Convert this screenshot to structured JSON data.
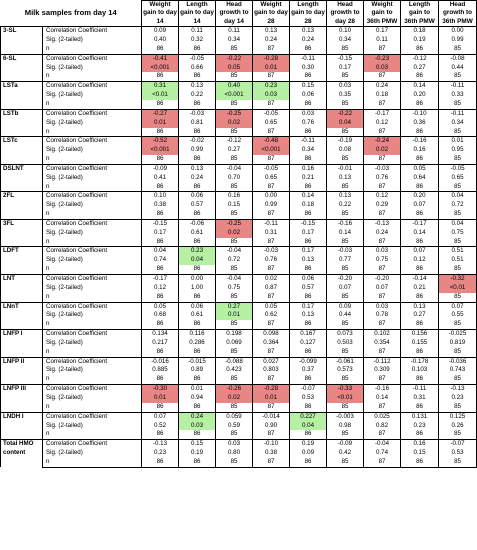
{
  "title": "Milk samples from day 14",
  "headers": [
    "Weight gain to day 14",
    "Length gain to day 14",
    "Head growth to day 14",
    "Weight gain to day 28",
    "Length gain to day 28",
    "Head growth to day 28",
    "Weight gain to 36th PMW",
    "Length gain to 36th PMW",
    "Head growth to 36th PMW"
  ],
  "header_lines": [
    [
      "Weight",
      "gain to day",
      "14"
    ],
    [
      "Length",
      "gain to day",
      "14"
    ],
    [
      "Head",
      "growth to",
      "day 14"
    ],
    [
      "Weight",
      "gain to day",
      "28"
    ],
    [
      "Length",
      "gain to day",
      "28"
    ],
    [
      "Head",
      "growth to",
      "day 28"
    ],
    [
      "Weight",
      "gain to",
      "36th PMW"
    ],
    [
      "Length",
      "gain to",
      "36th PMW"
    ],
    [
      "Head",
      "growth to",
      "36th PMW"
    ]
  ],
  "stat_labels": [
    "Correlation Coefficient",
    "Sig. (2-tailed)",
    "n"
  ],
  "highlight_colors": {
    "negative": "#e88686",
    "positive": "#b6f0a3"
  },
  "groups": [
    {
      "label": [
        "3-SL"
      ],
      "rows": [
        [
          "0.09",
          "0.11",
          "0.11",
          "0.13",
          "0.13",
          "0.10",
          "0.17",
          "0.18",
          "0.00"
        ],
        [
          "0.40",
          "0.32",
          "0.34",
          "0.24",
          "0.24",
          "0.34",
          "0.11",
          "0.19",
          "0.99"
        ],
        [
          "86",
          "86",
          "85",
          "87",
          "86",
          "85",
          "87",
          "86",
          "85"
        ]
      ],
      "hl": {}
    },
    {
      "label": [
        "6-SL"
      ],
      "rows": [
        [
          "-0.41",
          "-0.05",
          "-0.22",
          "-0.28",
          "-0.11",
          "-0.15",
          "-0.23",
          "-0.12",
          "-0.08"
        ],
        [
          "<0.001",
          "0.66",
          "0.05",
          "0.01",
          "0.30",
          "0.17",
          "0.03",
          "0.27",
          "0.44"
        ],
        [
          "86",
          "86",
          "85",
          "87",
          "86",
          "85",
          "87",
          "86",
          "85"
        ]
      ],
      "hl": {
        "0": "red",
        "2": "red",
        "3": "red",
        "6": "red"
      }
    },
    {
      "label": [
        "LSTa"
      ],
      "rows": [
        [
          "0.31",
          "0.13",
          "0.40",
          "0.23",
          "0.15",
          "0.03",
          "0.24",
          "0.14",
          "-0.11"
        ],
        [
          "<0.01",
          "0.22",
          "<0.001",
          "0.03",
          "0.06",
          "0.35",
          "0.18",
          "0.20",
          "0.33"
        ],
        [
          "86",
          "86",
          "85",
          "87",
          "86",
          "85",
          "87",
          "86",
          "85"
        ]
      ],
      "hl": {
        "0": "green",
        "2": "green",
        "3": "green"
      }
    },
    {
      "label": [
        "LSTb"
      ],
      "rows": [
        [
          "-0.27",
          "-0.03",
          "-0.25",
          "-0.05",
          "0.03",
          "-0.22",
          "-0.17",
          "-0.10",
          "-0.11"
        ],
        [
          "0.01",
          "0.81",
          "0.02",
          "0.65",
          "0.76",
          "0.04",
          "0.12",
          "0.36",
          "0.34"
        ],
        [
          "86",
          "86",
          "85",
          "87",
          "86",
          "85",
          "87",
          "86",
          "85"
        ]
      ],
      "hl": {
        "0": "red",
        "2": "red",
        "5": "red"
      }
    },
    {
      "label": [
        "LSTc"
      ],
      "rows": [
        [
          "-0.52",
          "-0.02",
          "-0.12",
          "-0.48",
          "-0.11",
          "-0.19",
          "-0.24",
          "-0.16",
          "0.01"
        ],
        [
          "<0.001",
          "0.99",
          "0.27",
          "<0.001",
          "0.34",
          "0.08",
          "0.02",
          "0.16",
          "0.95"
        ],
        [
          "86",
          "86",
          "85",
          "87",
          "86",
          "85",
          "87",
          "86",
          "85"
        ]
      ],
      "hl": {
        "0": "red",
        "3": "red",
        "6": "red"
      }
    },
    {
      "label": [
        "DSLNT"
      ],
      "rows": [
        [
          "-0.09",
          "0.13",
          "-0.04",
          "-0.05",
          "0.16",
          "-0.01",
          "-0.03",
          "0.05",
          "-0.05"
        ],
        [
          "0.41",
          "0.24",
          "0.70",
          "0.65",
          "0.21",
          "0.13",
          "0.76",
          "0.64",
          "0.65"
        ],
        [
          "86",
          "86",
          "85",
          "87",
          "86",
          "85",
          "87",
          "86",
          "85"
        ]
      ],
      "hl": {}
    },
    {
      "label": [
        "2FL"
      ],
      "rows": [
        [
          "0.10",
          "0.06",
          "0.16",
          "0.00",
          "0.14",
          "0.13",
          "0.12",
          "0.20",
          "0.04"
        ],
        [
          "0.38",
          "0.57",
          "0.15",
          "0.99",
          "0.18",
          "0.22",
          "0.29",
          "0.07",
          "0.72"
        ],
        [
          "86",
          "86",
          "85",
          "87",
          "86",
          "85",
          "87",
          "86",
          "85"
        ]
      ],
      "hl": {}
    },
    {
      "label": [
        "3FL"
      ],
      "rows": [
        [
          "-0.15",
          "-0.06",
          "-0.25",
          "-0.11",
          "-0.15",
          "-0.16",
          "-0.13",
          "-0.17",
          "0.04"
        ],
        [
          "0.17",
          "0.61",
          "0.02",
          "0.31",
          "0.17",
          "0.14",
          "0.24",
          "0.14",
          "0.75"
        ],
        [
          "86",
          "86",
          "85",
          "87",
          "86",
          "85",
          "87",
          "86",
          "85"
        ]
      ],
      "hl": {
        "2": "red"
      }
    },
    {
      "label": [
        "LDFT"
      ],
      "rows": [
        [
          "0.04",
          "0.23",
          "-0.04",
          "-0.03",
          "0.17",
          "-0.03",
          "0.03",
          "0.07",
          "0.51"
        ],
        [
          "0.74",
          "0.04",
          "0.72",
          "0.76",
          "0.13",
          "0.77",
          "0.75",
          "0.12",
          "0.51"
        ],
        [
          "86",
          "86",
          "85",
          "87",
          "86",
          "85",
          "87",
          "86",
          "85"
        ]
      ],
      "hl": {
        "1": "green"
      }
    },
    {
      "label": [
        "LNT"
      ],
      "rows": [
        [
          "-0.17",
          "0.00",
          "-0.04",
          "0.02",
          "0.06",
          "-0.20",
          "-0.20",
          "-0.14",
          "-0.32"
        ],
        [
          "0.12",
          "1.00",
          "0.75",
          "0.87",
          "0.57",
          "0.07",
          "0.07",
          "0.21",
          "<0.01"
        ],
        [
          "86",
          "86",
          "85",
          "87",
          "86",
          "85",
          "87",
          "86",
          "85"
        ]
      ],
      "hl": {
        "8": "red"
      }
    },
    {
      "label": [
        "LNnT"
      ],
      "rows": [
        [
          "0.05",
          "0.06",
          "0.27",
          "0.05",
          "0.17",
          "0.09",
          "0.03",
          "0.13",
          "0.07"
        ],
        [
          "0.68",
          "0.61",
          "0.01",
          "0.62",
          "0.13",
          "0.44",
          "0.78",
          "0.27",
          "0.55"
        ],
        [
          "86",
          "86",
          "85",
          "87",
          "86",
          "85",
          "87",
          "86",
          "85"
        ]
      ],
      "hl": {
        "2": "green"
      }
    },
    {
      "label": [
        "LNFP I"
      ],
      "rows": [
        [
          "0.134",
          "0.116",
          "0.198",
          "0.098",
          "0.167",
          "0.073",
          "0.102",
          "0.156",
          "-0.025"
        ],
        [
          "0.217",
          "0.286",
          "0.069",
          "0.364",
          "0.127",
          "0.503",
          "0.354",
          "0.155",
          "0.819"
        ],
        [
          "86",
          "86",
          "85",
          "87",
          "86",
          "85",
          "87",
          "86",
          "85"
        ]
      ],
      "hl": {}
    },
    {
      "label": [
        "LNFP II"
      ],
      "rows": [
        [
          "-0.016",
          "-0.015",
          "-0.088",
          "0.027",
          "-0.099",
          "-0.061",
          "-0.112",
          "-0.178",
          "-0.036"
        ],
        [
          "0.885",
          "0.89",
          "0.423",
          "0.803",
          "0.37",
          "0.573",
          "0.309",
          "0.103",
          "0.743"
        ],
        [
          "86",
          "86",
          "85",
          "87",
          "86",
          "85",
          "87",
          "86",
          "85"
        ]
      ],
      "hl": {}
    },
    {
      "label": [
        "LNFP III"
      ],
      "rows": [
        [
          "-0.30",
          "0.01",
          "-0.26",
          "-0.28",
          "-0.07",
          "-0.33",
          "-0.16",
          "-0.11",
          "-0.13"
        ],
        [
          "0.01",
          "0.94",
          "0.02",
          "0.01",
          "0.53",
          "<0.01",
          "0.14",
          "0.31",
          "0.23"
        ],
        [
          "86",
          "86",
          "85",
          "87",
          "86",
          "85",
          "87",
          "86",
          "85"
        ]
      ],
      "hl": {
        "0": "red",
        "2": "red",
        "3": "red",
        "5": "red"
      }
    },
    {
      "label": [
        "LNDH I"
      ],
      "rows": [
        [
          "0.07",
          "0.24",
          "0.059",
          "-0.014",
          "0.227",
          "-0.003",
          "0.025",
          "0.131",
          "0.125"
        ],
        [
          "0.52",
          "0.03",
          "0.59",
          "0.90",
          "0.04",
          "0.98",
          "0.82",
          "0.23",
          "0.26"
        ],
        [
          "86",
          "86",
          "85",
          "87",
          "86",
          "85",
          "87",
          "86",
          "85"
        ]
      ],
      "hl": {
        "1": "green",
        "4": "green"
      }
    },
    {
      "label": [
        "Total HMO",
        "content"
      ],
      "rows": [
        [
          "-0.13",
          "0.15",
          "0.03",
          "-0.10",
          "0.19",
          "-0.09",
          "-0.04",
          "0.16",
          "-0.07"
        ],
        [
          "0.23",
          "0.19",
          "0.80",
          "0.38",
          "0.09",
          "0.42",
          "0.74",
          "0.15",
          "0.53"
        ],
        [
          "86",
          "86",
          "85",
          "87",
          "86",
          "85",
          "87",
          "86",
          "85"
        ]
      ],
      "hl": {}
    }
  ]
}
